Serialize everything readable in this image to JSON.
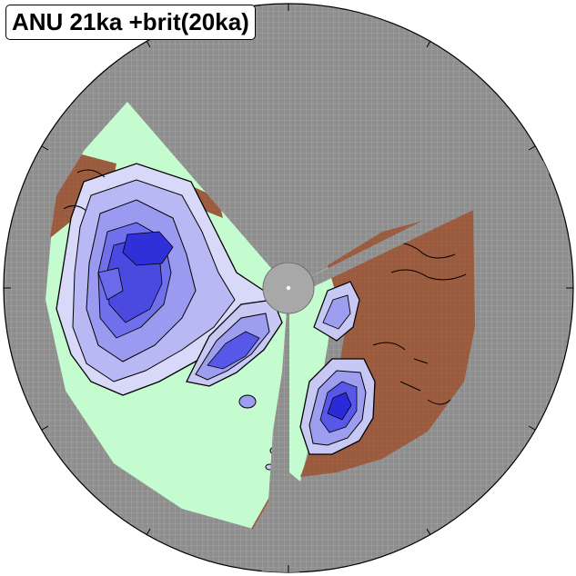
{
  "title": "ANU 21ka +brit(20ka)",
  "colors": {
    "mesh_gray": "#8c8c8c",
    "ocean_green": "#c4fcd0",
    "land_brown": "#9a5a3e",
    "ice_light": "#c8c8f4",
    "ice_mid": "#9e9ef0",
    "ice_dark": "#5858e8",
    "ice_deep": "#2a2ad8",
    "contour": "#000000"
  }
}
